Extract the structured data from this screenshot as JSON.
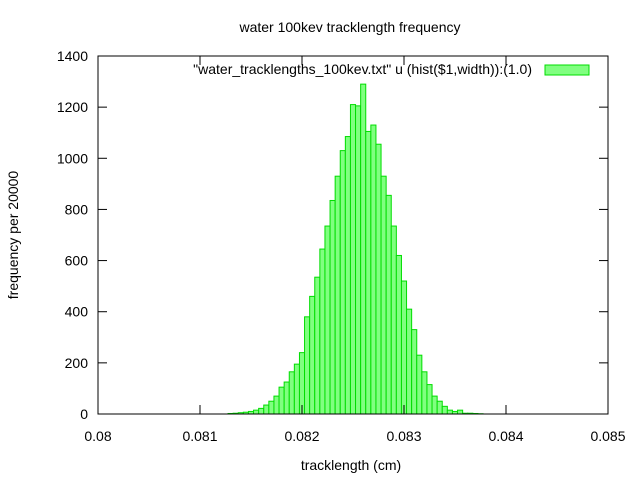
{
  "chart_data": {
    "type": "bar",
    "title": "water 100kev tracklength frequency",
    "xlabel": "tracklength (cm)",
    "ylabel": "frequency per 20000",
    "xlim": [
      0.08,
      0.085
    ],
    "ylim": [
      0,
      1400
    ],
    "x_ticks": [
      {
        "value": 0.08,
        "label": "0.08"
      },
      {
        "value": 0.081,
        "label": "0.081"
      },
      {
        "value": 0.082,
        "label": "0.082"
      },
      {
        "value": 0.083,
        "label": "0.083"
      },
      {
        "value": 0.084,
        "label": "0.084"
      },
      {
        "value": 0.085,
        "label": "0.085"
      }
    ],
    "y_ticks": [
      {
        "value": 0,
        "label": "0"
      },
      {
        "value": 200,
        "label": "200"
      },
      {
        "value": 400,
        "label": "400"
      },
      {
        "value": 600,
        "label": "600"
      },
      {
        "value": 800,
        "label": "800"
      },
      {
        "value": 1000,
        "label": "1000"
      },
      {
        "value": 1200,
        "label": "1200"
      },
      {
        "value": 1400,
        "label": "1400"
      }
    ],
    "grid": false,
    "legend_position": "top-right",
    "bar_fill": "#80ff80",
    "bar_stroke": "#00dd00",
    "series": [
      {
        "name": "\"water_tracklengths_100kev.txt\" u (hist($1,width)):(1.0)",
        "x": [
          0.0813,
          0.08135,
          0.0814,
          0.08145,
          0.0815,
          0.08155,
          0.0816,
          0.08165,
          0.0817,
          0.08175,
          0.0818,
          0.08185,
          0.0819,
          0.08195,
          0.082,
          0.08205,
          0.0821,
          0.08215,
          0.0822,
          0.08225,
          0.0823,
          0.08235,
          0.0824,
          0.08245,
          0.0825,
          0.08255,
          0.0826,
          0.08265,
          0.0827,
          0.08275,
          0.0828,
          0.08285,
          0.0829,
          0.08295,
          0.083,
          0.08305,
          0.0831,
          0.08315,
          0.0832,
          0.08325,
          0.0833,
          0.08335,
          0.0834,
          0.08345,
          0.0835,
          0.08355,
          0.0836,
          0.08365,
          0.0837,
          0.08375
        ],
        "values": [
          2,
          3,
          5,
          7,
          10,
          15,
          22,
          35,
          50,
          70,
          105,
          125,
          165,
          195,
          240,
          380,
          460,
          535,
          645,
          735,
          835,
          930,
          1030,
          1085,
          1210,
          1205,
          1290,
          1105,
          1130,
          1055,
          930,
          855,
          735,
          620,
          520,
          410,
          330,
          230,
          165,
          115,
          70,
          50,
          30,
          15,
          10,
          15,
          3,
          3,
          2,
          1
        ]
      }
    ]
  }
}
